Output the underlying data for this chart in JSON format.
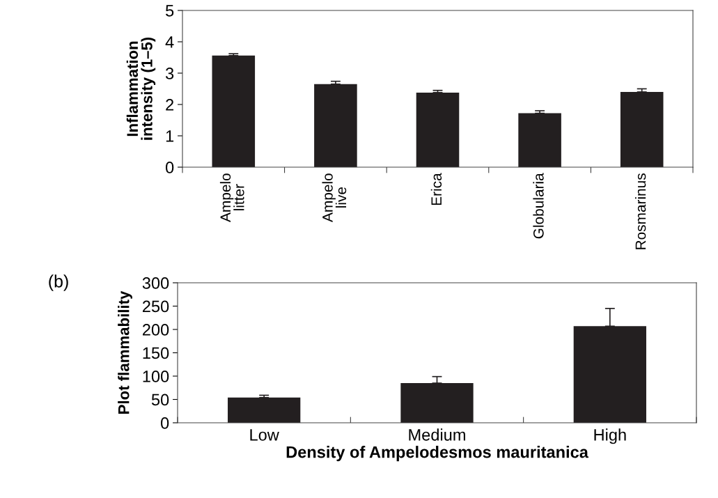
{
  "chart_data": [
    {
      "type": "bar",
      "ylabel": "Inflammation\nintensity (1–5)",
      "categories": [
        "Ampelo\nlitter",
        "Ampelo\nlive",
        "Erica",
        "Globularia",
        "Rosmarinus"
      ],
      "values": [
        3.56,
        2.65,
        2.38,
        1.72,
        2.4
      ],
      "errors": [
        0.06,
        0.09,
        0.07,
        0.08,
        0.1
      ],
      "color": "#231f20",
      "ylim": [
        0,
        5
      ],
      "yticks": [
        0,
        1,
        2,
        3,
        4,
        5
      ],
      "grid": false,
      "legend": false
    },
    {
      "type": "bar",
      "ylabel": "Plot flammability",
      "xlabel": "Density of Ampelodesmos mauritanica",
      "annotations": [
        "(b)"
      ],
      "categories": [
        "Low",
        "Medium",
        "High"
      ],
      "values": [
        54,
        85,
        207
      ],
      "errors": [
        5,
        14,
        38
      ],
      "color": "#231f20",
      "ylim": [
        0,
        300
      ],
      "yticks": [
        0,
        50,
        100,
        150,
        200,
        250,
        300
      ],
      "grid": false,
      "legend": false
    }
  ]
}
